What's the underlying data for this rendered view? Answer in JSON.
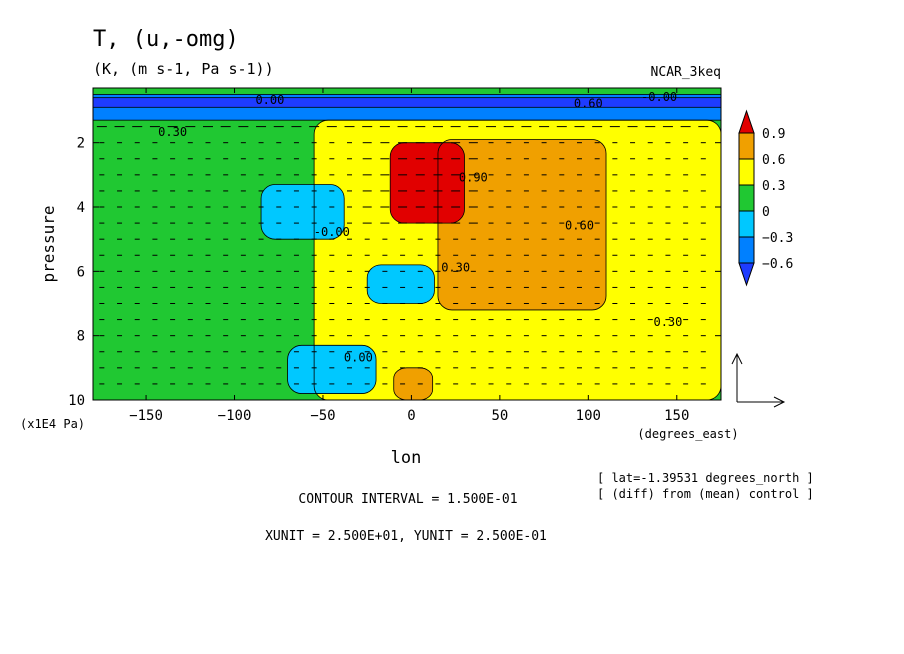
{
  "header": {
    "title": "T, (u,-omg)",
    "units": "(K, (m s-1, Pa s-1))",
    "source": "NCAR_3keq"
  },
  "footer": {
    "contour_interval": "CONTOUR INTERVAL = 1.500E-01",
    "units_line": "XUNIT = 2.500E+01, YUNIT = 2.500E-01",
    "lat_info": "[ lat=-1.39531 degrees_north ]",
    "diff_info": "[ (diff) from (mean) control ]"
  },
  "chart_data": {
    "type": "heatmap",
    "title": "T, (u,-omg)",
    "subtitle": "(K, (m s-1, Pa s-1))",
    "xlabel": "lon",
    "x_unit_label": "(degrees_east)",
    "ylabel": "pressure",
    "y_unit_label": "(x1E4 Pa)",
    "xlim": [
      -180,
      175
    ],
    "ylim": [
      10,
      0.3
    ],
    "x_ticks": [
      -150,
      -100,
      -50,
      0,
      50,
      100,
      150
    ],
    "x_tick_labels": [
      "−150",
      "−100",
      "−50",
      "0",
      "50",
      "100",
      "150"
    ],
    "y_ticks": [
      2,
      4,
      6,
      8,
      10
    ],
    "y_tick_labels": [
      "2",
      "4",
      "6",
      "8",
      "10"
    ],
    "colorbar": {
      "labels": [
        "0.9",
        "0.6",
        "0.3",
        "0",
        "−0.3",
        "−0.6"
      ],
      "levels": [
        0.9,
        0.6,
        0.3,
        0,
        -0.3,
        -0.6
      ],
      "colors": [
        "#e10000",
        "#f0a000",
        "#ffff00",
        "#20c832",
        "#00c8ff",
        "#0080ff",
        "#1e3cff"
      ]
    },
    "regions": [
      {
        "level": "0 to 0.3",
        "color": "#20c832",
        "x": [
          -180,
          175
        ],
        "y": [
          0.3,
          10
        ]
      },
      {
        "level": "0.3 to 0.6",
        "color": "#ffff00",
        "x": [
          -55,
          175
        ],
        "y": [
          1.3,
          10
        ]
      },
      {
        "level": "0.6 to 0.9",
        "color": "#f0a000",
        "x": [
          15,
          110
        ],
        "y": [
          1.9,
          7.2
        ]
      },
      {
        "level": "0.6 to 0.9",
        "color": "#f0a000",
        "x": [
          -10,
          12
        ],
        "y": [
          9.0,
          10
        ]
      },
      {
        "level": "> 0.9",
        "color": "#e10000",
        "x": [
          -12,
          30
        ],
        "y": [
          2.0,
          4.5
        ]
      },
      {
        "level": "-0.3 to 0",
        "color": "#00c8ff",
        "x": [
          -85,
          -38
        ],
        "y": [
          3.3,
          5.0
        ]
      },
      {
        "level": "-0.3 to 0",
        "color": "#00c8ff",
        "x": [
          -25,
          13
        ],
        "y": [
          5.8,
          7.0
        ]
      },
      {
        "level": "-0.3 to 0",
        "color": "#00c8ff",
        "x": [
          -70,
          -20
        ],
        "y": [
          8.3,
          9.8
        ]
      },
      {
        "level": "-0.6 to -0.3",
        "color": "#0080ff",
        "x": [
          -180,
          175
        ],
        "y": [
          0.5,
          1.3
        ]
      },
      {
        "level": "< -0.6",
        "color": "#1e3cff",
        "x": [
          -180,
          175
        ],
        "y": [
          0.6,
          0.9
        ]
      }
    ],
    "contour_labels": [
      {
        "text": "0.30",
        "lon": -135,
        "p": 1.8
      },
      {
        "text": "0.00",
        "lon": -80,
        "p": 0.8
      },
      {
        "text": "0.60",
        "lon": 100,
        "p": 0.9
      },
      {
        "text": "-0.00",
        "lon": 140,
        "p": 0.7
      },
      {
        "text": "-0.00",
        "lon": -45,
        "p": 4.9
      },
      {
        "text": "0.90",
        "lon": 35,
        "p": 3.2
      },
      {
        "text": "0.60",
        "lon": 95,
        "p": 4.7
      },
      {
        "text": "0.30",
        "lon": 25,
        "p": 6.0
      },
      {
        "text": "0.30",
        "lon": 145,
        "p": 7.7
      },
      {
        "text": "0.00",
        "lon": -30,
        "p": 8.8
      }
    ]
  }
}
